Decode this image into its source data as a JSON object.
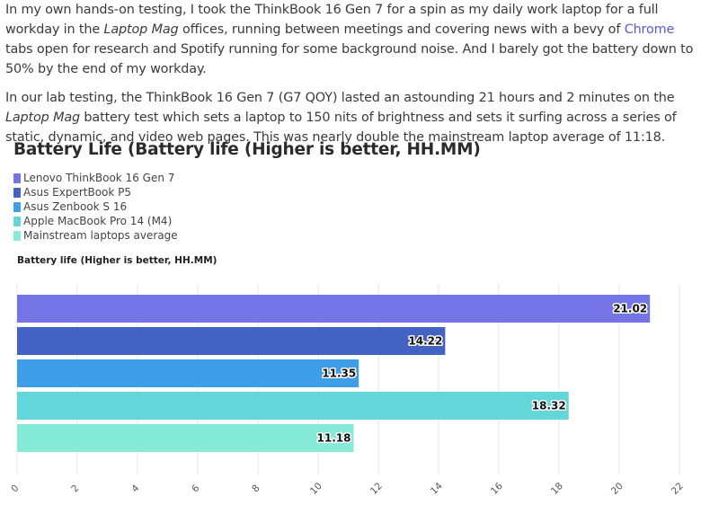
{
  "article": {
    "p1_a": "In my own hands-on testing, I took the ThinkBook 16 Gen 7 for a spin as my daily work laptop for a full workday in the ",
    "p1_em": "Laptop Mag",
    "p1_b": " offices, running between meetings and covering news with a bevy of ",
    "p1_link": "Chrome",
    "p1_c": " tabs open for research and Spotify running for some background noise. And I barely got the battery down to 50% by the end of my workday.",
    "p2_a": "In our lab testing, the ThinkBook 16 Gen 7 (G7 QOY) lasted an astounding 21 hours and 2 minutes on the ",
    "p2_em": "Laptop Mag",
    "p2_b": " battery test which sets a laptop to 150 nits of brightness and sets it surfing across a series of static, dynamic, and video web pages. This was nearly double the mainstream laptop average of 11:18."
  },
  "chart_data": {
    "type": "bar",
    "orientation": "horizontal",
    "title": "Battery Life (Battery life (Higher is better, HH.MM)",
    "plot_label": "Battery life (Higher is better, HH.MM)",
    "categories": [
      "Lenovo ThinkBook 16 Gen 7",
      "Asus ExpertBook P5",
      "Asus Zenbook S 16",
      "Apple MacBook Pro 14 (M4)",
      "Mainstream laptops average"
    ],
    "values": [
      21.02,
      14.22,
      11.35,
      18.32,
      11.18
    ],
    "value_labels": [
      "21.02",
      "14.22",
      "11.35",
      "18.32",
      "11.18"
    ],
    "colors": [
      "#7474e6",
      "#4262c4",
      "#3e9ee8",
      "#62d6d8",
      "#86ead8"
    ],
    "xlim": [
      0,
      22
    ],
    "x_ticks": [
      "0",
      "2",
      "4",
      "6",
      "8",
      "10",
      "12",
      "14",
      "16",
      "18",
      "20",
      "22"
    ],
    "grid": true,
    "legend_position": "top-left"
  }
}
